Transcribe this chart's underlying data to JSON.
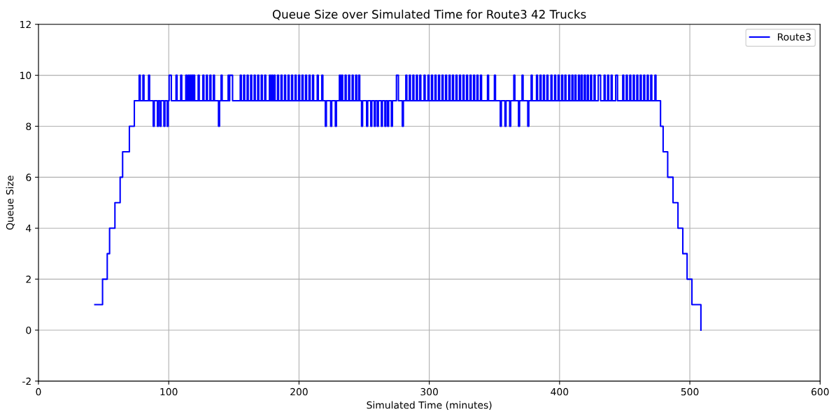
{
  "chart_data": {
    "type": "step",
    "title": "Queue Size over Simulated Time for Route3 42 Trucks",
    "xlabel": "Simulated Time (minutes)",
    "ylabel": "Queue Size",
    "xlim": [
      0,
      600
    ],
    "xticks": [
      0,
      100,
      200,
      300,
      400,
      500,
      600
    ],
    "ylim": [
      -2,
      12
    ],
    "yticks": [
      -2,
      0,
      2,
      4,
      6,
      8,
      10,
      12
    ],
    "grid": true,
    "legend": "top right",
    "series": [
      {
        "name": "Route3",
        "color": "#0000ff",
        "x": [
          43.3,
          49.2,
          52.8,
          54.6,
          58.7,
          62.7,
          64.6,
          69.8,
          73.6,
          77.3,
          78.1,
          80.2,
          81.0,
          84.5,
          85.3,
          88.1,
          88.9,
          91.3,
          92.1,
          93.3,
          94.1,
          96.3,
          97.1,
          98.8,
          99.6,
          100.3,
          102.0,
          105.6,
          106.4,
          109.2,
          110.0,
          113.1,
          113.9,
          114.9,
          115.7,
          116.4,
          117.2,
          117.8,
          118.6,
          119.1,
          119.9,
          122.6,
          123.4,
          126.2,
          127.0,
          128.9,
          129.7,
          131.6,
          132.4,
          134.3,
          135.1,
          138.2,
          139.0,
          140.2,
          141.0,
          145.6,
          146.4,
          146.8,
          149.0,
          154.9,
          155.7,
          157.5,
          158.3,
          160.2,
          161.0,
          162.9,
          163.7,
          165.6,
          166.4,
          168.3,
          169.1,
          171.0,
          171.8,
          173.7,
          174.5,
          177.3,
          178.1,
          179.0,
          179.8,
          180.8,
          181.6,
          183.5,
          184.3,
          186.2,
          187.0,
          188.9,
          189.7,
          191.6,
          192.4,
          194.3,
          195.1,
          197.0,
          197.8,
          199.7,
          200.5,
          202.3,
          203.1,
          205.0,
          205.8,
          207.7,
          208.5,
          210.4,
          211.2,
          214.0,
          214.8,
          217.5,
          218.3,
          220.2,
          221.0,
          224.3,
          225.1,
          227.9,
          228.7,
          231.0,
          231.8,
          232.7,
          233.5,
          235.4,
          236.2,
          238.1,
          238.9,
          240.8,
          241.6,
          243.5,
          244.3,
          245.8,
          246.6,
          248.0,
          248.8,
          251.9,
          252.7,
          255.1,
          255.9,
          257.8,
          258.6,
          260.1,
          260.9,
          263.2,
          264.0,
          265.9,
          266.7,
          268.0,
          268.8,
          270.9,
          271.7,
          274.8,
          276.3,
          279.3,
          280.1,
          282.0,
          282.8,
          284.7,
          285.5,
          287.4,
          288.2,
          290.1,
          290.9,
          292.7,
          293.5,
          296.0,
          296.8,
          299.0,
          299.8,
          301.7,
          302.5,
          304.4,
          305.2,
          307.1,
          307.9,
          309.8,
          310.6,
          312.5,
          313.3,
          315.2,
          316.0,
          317.8,
          318.6,
          320.5,
          321.3,
          323.2,
          324.0,
          325.9,
          326.7,
          328.6,
          329.4,
          331.3,
          332.1,
          334.0,
          334.8,
          336.6,
          337.4,
          339.3,
          340.1,
          344.7,
          345.5,
          350.0,
          350.8,
          354.5,
          355.3,
          358.1,
          358.9,
          361.7,
          362.5,
          364.9,
          365.7,
          368.5,
          369.3,
          371.2,
          372.0,
          375.6,
          376.4,
          378.2,
          379.0,
          382.3,
          383.1,
          385.0,
          385.8,
          387.6,
          388.4,
          390.3,
          391.1,
          393.4,
          394.2,
          396.2,
          397.0,
          398.9,
          399.7,
          401.6,
          402.4,
          404.1,
          404.9,
          407.0,
          407.8,
          409.5,
          410.3,
          411.8,
          412.6,
          414.5,
          415.3,
          416.6,
          417.4,
          419.0,
          419.8,
          421.3,
          422.1,
          423.8,
          424.6,
          426.5,
          427.3,
          429.7,
          431.5,
          434.2,
          435.0,
          436.9,
          437.7,
          439.6,
          440.4,
          443.1,
          444.5,
          448.5,
          449.3,
          451.2,
          452.0,
          453.9,
          454.7,
          456.6,
          457.4,
          459.3,
          460.1,
          461.9,
          462.7,
          464.6,
          465.4,
          467.3,
          468.1,
          470.0,
          470.8,
          473.2,
          474.0,
          477.5,
          479.5,
          483.0,
          487.1,
          490.9,
          494.6,
          497.9,
          501.6,
          508.5
        ],
        "values": [
          1,
          2,
          3,
          4,
          5,
          6,
          7,
          8,
          9,
          10,
          9,
          10,
          9,
          10,
          9,
          8,
          9,
          8,
          9,
          8,
          9,
          8,
          9,
          8,
          9,
          10,
          9,
          10,
          9,
          10,
          9,
          10,
          9,
          10,
          9,
          10,
          9,
          10,
          9,
          10,
          9,
          10,
          9,
          10,
          9,
          10,
          9,
          10,
          9,
          10,
          9,
          8,
          9,
          10,
          9,
          10,
          9,
          10,
          9,
          10,
          9,
          10,
          9,
          10,
          9,
          10,
          9,
          10,
          9,
          10,
          9,
          10,
          9,
          10,
          9,
          10,
          9,
          10,
          9,
          10,
          9,
          10,
          9,
          10,
          9,
          10,
          9,
          10,
          9,
          10,
          9,
          10,
          9,
          10,
          9,
          10,
          9,
          10,
          9,
          10,
          9,
          10,
          9,
          10,
          9,
          10,
          9,
          8,
          9,
          8,
          9,
          8,
          9,
          10,
          9,
          10,
          9,
          10,
          9,
          10,
          9,
          10,
          9,
          10,
          9,
          10,
          9,
          8,
          9,
          8,
          9,
          8,
          9,
          8,
          9,
          8,
          9,
          8,
          9,
          8,
          9,
          8,
          9,
          8,
          9,
          10,
          9,
          8,
          9,
          10,
          9,
          10,
          9,
          10,
          9,
          10,
          9,
          10,
          9,
          10,
          9,
          10,
          9,
          10,
          9,
          10,
          9,
          10,
          9,
          10,
          9,
          10,
          9,
          10,
          9,
          10,
          9,
          10,
          9,
          10,
          9,
          10,
          9,
          10,
          9,
          10,
          9,
          10,
          9,
          10,
          9,
          10,
          9,
          10,
          9,
          10,
          9,
          8,
          9,
          8,
          9,
          8,
          9,
          10,
          9,
          8,
          9,
          10,
          9,
          8,
          9,
          10,
          9,
          10,
          9,
          10,
          9,
          10,
          9,
          10,
          9,
          10,
          9,
          10,
          9,
          10,
          9,
          10,
          9,
          10,
          9,
          10,
          9,
          10,
          9,
          10,
          9,
          10,
          9,
          10,
          9,
          10,
          9,
          10,
          9,
          10,
          9,
          10,
          9,
          10,
          9,
          10,
          9,
          10,
          9,
          10,
          9,
          10,
          9,
          10,
          9,
          10,
          9,
          10,
          9,
          10,
          9,
          10,
          9,
          10,
          9,
          10,
          9,
          10,
          9,
          10,
          9,
          10,
          9,
          8,
          7,
          6,
          5,
          4,
          3,
          2,
          1,
          0
        ]
      }
    ]
  }
}
